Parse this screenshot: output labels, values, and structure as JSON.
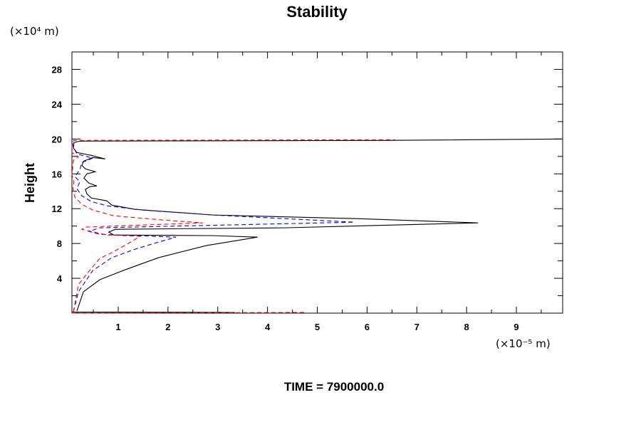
{
  "chart_data": {
    "type": "line",
    "title": "Stability",
    "ylabel": "Height",
    "y_unit": "(×10⁴ m)",
    "x_unit": "(×10⁻⁵ m)",
    "footer": "TIME = 7900000.0",
    "xlim": [
      0.07,
      9.93
    ],
    "ylim": [
      0,
      30
    ],
    "x_ticks": [
      1,
      2,
      3,
      4,
      5,
      6,
      7,
      8,
      9
    ],
    "x_tick_labels": [
      "1",
      "2",
      "3",
      "4",
      "5",
      "6",
      "7",
      "8",
      "9"
    ],
    "y_ticks": [
      4,
      8,
      12,
      16,
      20,
      24,
      28
    ],
    "y_tick_labels": [
      "4",
      "8",
      "12",
      "16",
      "20",
      "24",
      "28"
    ],
    "grid": false,
    "series": [
      {
        "name": "black-solid",
        "color": "#000000",
        "dash": "solid",
        "segments": [
          [
            [
              0.17,
              0.24
            ],
            [
              0.3,
              2.45
            ],
            [
              0.63,
              3.84
            ],
            [
              1.1,
              4.9
            ],
            [
              1.81,
              6.37
            ],
            [
              2.77,
              7.76
            ],
            [
              3.8,
              8.73
            ],
            [
              2.91,
              8.9
            ],
            [
              0.91,
              8.98
            ],
            [
              0.81,
              9.31
            ],
            [
              0.94,
              9.63
            ],
            [
              4.34,
              9.8
            ],
            [
              8.23,
              10.37
            ],
            [
              5.77,
              10.86
            ],
            [
              2.91,
              11.27
            ],
            [
              1.34,
              11.92
            ],
            [
              0.87,
              12.41
            ],
            [
              0.77,
              12.9
            ],
            [
              0.46,
              13.22
            ],
            [
              0.37,
              13.71
            ],
            [
              0.34,
              14.2
            ],
            [
              0.43,
              14.53
            ],
            [
              0.57,
              14.61
            ],
            [
              0.41,
              14.94
            ],
            [
              0.31,
              15.51
            ],
            [
              0.37,
              16.0
            ],
            [
              0.54,
              16.24
            ],
            [
              0.34,
              16.57
            ],
            [
              0.27,
              16.98
            ],
            [
              0.31,
              17.47
            ],
            [
              0.49,
              17.88
            ],
            [
              0.74,
              17.71
            ],
            [
              0.46,
              18.12
            ],
            [
              0.17,
              18.45
            ],
            [
              0.1,
              18.94
            ],
            [
              0.11,
              19.59
            ],
            [
              0.23,
              19.76
            ],
            [
              6.34,
              19.84
            ],
            [
              9.91,
              20.0
            ]
          ],
          [
            [
              0.08,
              0.12
            ],
            [
              3.34,
              0.08
            ]
          ]
        ]
      },
      {
        "name": "blue-dashed",
        "color": "#0000ff",
        "dash": "dashed",
        "segments": [
          [
            [
              0.1,
              0.16
            ],
            [
              0.2,
              2.45
            ],
            [
              0.49,
              4.9
            ],
            [
              0.87,
              6.37
            ],
            [
              1.34,
              7.35
            ],
            [
              1.81,
              8.16
            ],
            [
              2.16,
              8.73
            ],
            [
              0.63,
              9.06
            ],
            [
              0.41,
              9.39
            ],
            [
              0.63,
              9.8
            ],
            [
              5.74,
              10.45
            ],
            [
              2.91,
              11.27
            ],
            [
              1.49,
              11.84
            ],
            [
              0.77,
              12.33
            ],
            [
              0.46,
              12.82
            ],
            [
              0.27,
              13.47
            ],
            [
              0.17,
              14.29
            ],
            [
              0.23,
              15.1
            ],
            [
              0.13,
              15.67
            ],
            [
              0.23,
              16.49
            ],
            [
              0.27,
              17.31
            ],
            [
              0.49,
              17.8
            ],
            [
              0.17,
              18.29
            ],
            [
              0.09,
              19.18
            ],
            [
              0.07,
              19.76
            ]
          ]
        ]
      },
      {
        "name": "red-dashed",
        "color": "#ff0000",
        "dash": "dashed",
        "segments": [
          [
            [
              0.1,
              0.16
            ],
            [
              0.2,
              3.27
            ],
            [
              0.39,
              4.65
            ],
            [
              0.63,
              6.29
            ],
            [
              0.87,
              6.94
            ],
            [
              1.2,
              8.0
            ],
            [
              1.44,
              8.82
            ],
            [
              0.77,
              8.98
            ],
            [
              0.27,
              9.63
            ],
            [
              0.34,
              9.88
            ],
            [
              2.7,
              10.37
            ],
            [
              1.91,
              10.69
            ],
            [
              0.91,
              11.18
            ],
            [
              0.49,
              11.84
            ],
            [
              0.27,
              12.49
            ],
            [
              0.13,
              13.31
            ],
            [
              0.09,
              14.29
            ],
            [
              0.11,
              15.1
            ],
            [
              0.07,
              15.92
            ],
            [
              0.1,
              17.55
            ],
            [
              0.2,
              17.96
            ],
            [
              0.07,
              18.45
            ],
            [
              0.07,
              19.59
            ],
            [
              0.11,
              19.84
            ],
            [
              6.56,
              19.92
            ]
          ],
          [
            [
              0.07,
              0.0
            ],
            [
              4.77,
              0.08
            ]
          ]
        ]
      }
    ]
  }
}
